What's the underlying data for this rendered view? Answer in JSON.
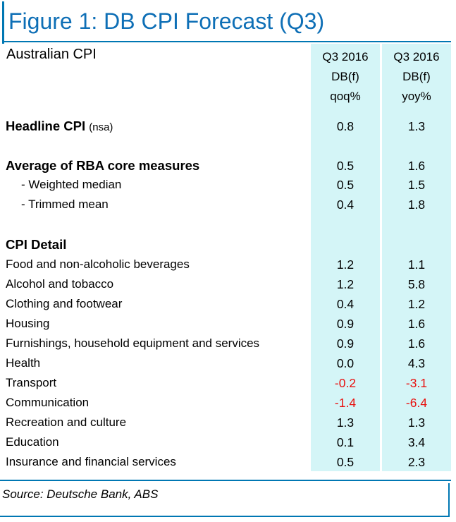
{
  "title": "Figure 1: DB CPI Forecast (Q3)",
  "section_title": "Australian CPI",
  "columns": [
    {
      "line1": "Q3 2016",
      "line2": "DB(f)",
      "line3": "qoq%"
    },
    {
      "line1": "Q3 2016",
      "line2": "DB(f)",
      "line3": "yoy%"
    }
  ],
  "headline": {
    "label": "Headline CPI",
    "note": "(nsa)",
    "qoq": "0.8",
    "yoy": "1.3"
  },
  "core": {
    "label": "Average of RBA core measures",
    "qoq": "0.5",
    "yoy": "1.6"
  },
  "core_items": [
    {
      "label": "- Weighted median",
      "qoq": "0.5",
      "yoy": "1.5"
    },
    {
      "label": "- Trimmed mean",
      "qoq": "0.4",
      "yoy": "1.8"
    }
  ],
  "detail_heading": "CPI Detail",
  "detail_items": [
    {
      "label": "Food and non-alcoholic beverages",
      "qoq": "1.2",
      "yoy": "1.1"
    },
    {
      "label": "Alcohol and tobacco",
      "qoq": "1.2",
      "yoy": "5.8"
    },
    {
      "label": "Clothing and footwear",
      "qoq": "0.4",
      "yoy": "1.2"
    },
    {
      "label": "Housing",
      "qoq": "0.9",
      "yoy": "1.6"
    },
    {
      "label": "Furnishings, household equipment and services",
      "qoq": "0.9",
      "yoy": "1.6"
    },
    {
      "label": "Health",
      "qoq": "0.0",
      "yoy": "4.3"
    },
    {
      "label": "Transport",
      "qoq": "-0.2",
      "yoy": "-3.1"
    },
    {
      "label": "Communication",
      "qoq": "-1.4",
      "yoy": "-6.4"
    },
    {
      "label": "Recreation and culture",
      "qoq": "1.3",
      "yoy": "1.3"
    },
    {
      "label": "Education",
      "qoq": "0.1",
      "yoy": "3.4"
    },
    {
      "label": "Insurance and financial services",
      "qoq": "0.5",
      "yoy": "2.3"
    }
  ],
  "source": "Source: Deutsche Bank, ABS",
  "colors": {
    "title": "#0e6fb6",
    "rule": "#0077b3",
    "band": "#d4f5f7",
    "negative": "#e8110f"
  }
}
